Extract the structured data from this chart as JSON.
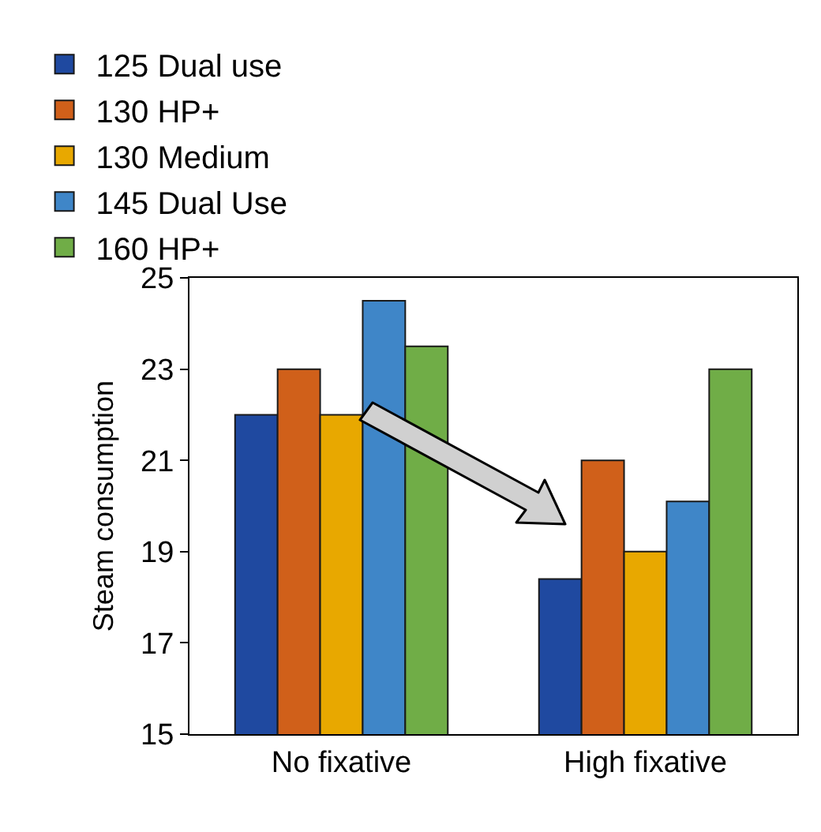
{
  "chart_data": {
    "type": "bar",
    "ylabel": "Steam consumption",
    "categories": [
      "No fixative",
      "High fixative"
    ],
    "series": [
      {
        "name": "125 Dual use",
        "color": "#1f49a0",
        "values": [
          22.0,
          18.4
        ]
      },
      {
        "name": "130 HP+",
        "color": "#d0601a",
        "values": [
          23.0,
          21.0
        ]
      },
      {
        "name": "130 Medium",
        "color": "#e8a800",
        "values": [
          22.0,
          19.0
        ]
      },
      {
        "name": "145 Dual Use",
        "color": "#3f86c8",
        "values": [
          24.5,
          20.1
        ]
      },
      {
        "name": "160 HP+",
        "color": "#70ad47",
        "values": [
          23.5,
          23.0
        ]
      }
    ],
    "ylim": [
      15,
      25
    ],
    "yticks": [
      15,
      17,
      19,
      21,
      23,
      25
    ],
    "grid": false,
    "legend": "top"
  }
}
